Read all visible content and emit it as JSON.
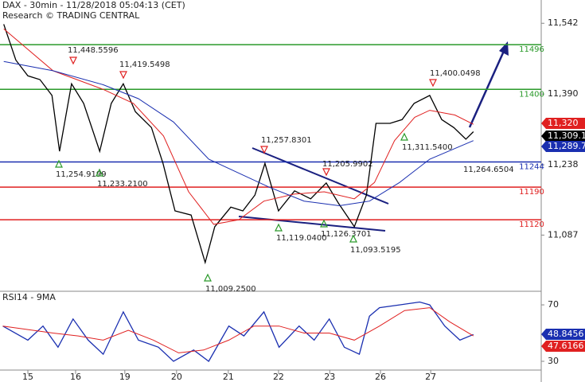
{
  "chart_data": [
    {
      "type": "line",
      "title": "DAX - 30min - 11/28/2018 05:04:13 (CET)",
      "subtitle": "Research © TRADING CENTRAL",
      "xlim": [
        -0.555,
        10.22
      ],
      "ylim": [
        10968,
        11592
      ],
      "yticks": [
        {
          "value": 11542,
          "label": "11,542"
        },
        {
          "value": 11390,
          "label": "11,390"
        },
        {
          "value": 11238,
          "label": "11,238"
        },
        {
          "value": 11087,
          "label": "11,087"
        }
      ],
      "series": [
        {
          "color": "#000000",
          "x": [
            -0.48,
            -0.24,
            0,
            0.24,
            0.48,
            0.63,
            0.87,
            1.11,
            1.43,
            1.66,
            1.9,
            2.14,
            2.46,
            2.69,
            2.93,
            3.25,
            3.53,
            3.72,
            4.04,
            4.28,
            4.52,
            4.72,
            4.99,
            5.31,
            5.63,
            5.94,
            6.18,
            6.5,
            6.74,
            6.93,
            7.21,
            7.45,
            7.69,
            8.0,
            8.24,
            8.48,
            8.72,
            8.87
          ],
          "values": [
            11540,
            11463,
            11429,
            11421,
            11387,
            11267,
            11412,
            11370,
            11267,
            11370,
            11412,
            11352,
            11318,
            11241,
            11139,
            11130,
            11028,
            11105,
            11147,
            11139,
            11173,
            11241,
            11139,
            11182,
            11165,
            11199,
            11156,
            11105,
            11173,
            11327,
            11327,
            11335,
            11370,
            11387,
            11335,
            11318,
            11293,
            11309
          ]
        },
        {
          "color": "#e02020",
          "x": [
            -0.48,
            0.5,
            1.5,
            2.1,
            2.7,
            3.2,
            3.7,
            4.2,
            4.7,
            5.3,
            5.9,
            6.5,
            6.9,
            7.3,
            7.7,
            8.0,
            8.5,
            8.87
          ],
          "values": [
            11530,
            11440,
            11400,
            11370,
            11300,
            11180,
            11110,
            11120,
            11160,
            11175,
            11180,
            11165,
            11200,
            11290,
            11340,
            11355,
            11345,
            11325
          ]
        },
        {
          "color": "#1a2fb0",
          "x": [
            -0.48,
            0.5,
            1.5,
            2.2,
            2.9,
            3.6,
            4.2,
            4.8,
            5.5,
            6.2,
            6.8,
            7.4,
            8.0,
            8.87
          ],
          "values": [
            11460,
            11440,
            11410,
            11380,
            11330,
            11250,
            11220,
            11190,
            11160,
            11150,
            11160,
            11200,
            11250,
            11290
          ]
        }
      ],
      "levels": [
        {
          "value": 11496,
          "color": "#2a9a2a"
        },
        {
          "value": 11400,
          "color": "#2a9a2a"
        },
        {
          "value": 11244,
          "color": "#1a2fb0"
        },
        {
          "value": 11190,
          "color": "#e02020"
        },
        {
          "value": 11120,
          "color": "#e02020"
        }
      ],
      "price_tags": [
        {
          "value": 11320,
          "label": "11,320",
          "color": "#e02020"
        },
        {
          "value": 11309.1,
          "label": "11,309.1",
          "color": "#000000"
        },
        {
          "value": 11289.7,
          "label": "11,289.7",
          "color": "#1a2fb0"
        }
      ],
      "annotations": [
        {
          "text": "11,448.5596",
          "marker": "down"
        },
        {
          "text": "11,419.5498",
          "marker": "down"
        },
        {
          "text": "11,254.9199",
          "marker": "up"
        },
        {
          "text": "11,233.2100",
          "marker": "up"
        },
        {
          "text": "11,257.8301",
          "marker": "down"
        },
        {
          "text": "11,205.9902",
          "marker": "down"
        },
        {
          "text": "11,119.0400",
          "marker": "up"
        },
        {
          "text": "11,126.3701",
          "marker": "up"
        },
        {
          "text": "11,093.5195",
          "marker": "up"
        },
        {
          "text": "11,009.2500",
          "marker": "up"
        },
        {
          "text": "11,400.0498",
          "marker": "down"
        },
        {
          "text": "11,311.5400",
          "marker": "up"
        },
        {
          "text": "11,264.6504"
        }
      ]
    },
    {
      "type": "line",
      "title": "RSI14 - 9MA",
      "xlim": [
        -0.555,
        10.22
      ],
      "ylim": [
        23.8,
        78.5
      ],
      "yticks": [
        70,
        30
      ],
      "xticks": [
        {
          "value": 0,
          "label": "15"
        },
        {
          "value": 0.95,
          "label": "16"
        },
        {
          "value": 1.93,
          "label": "19"
        },
        {
          "value": 2.96,
          "label": "20"
        },
        {
          "value": 3.99,
          "label": "21"
        },
        {
          "value": 4.99,
          "label": "22"
        },
        {
          "value": 6.01,
          "label": "23"
        },
        {
          "value": 7.02,
          "label": "26"
        },
        {
          "value": 8.02,
          "label": "27"
        }
      ],
      "series": [
        {
          "color": "#1a2fb0",
          "x": [
            -0.5,
            0,
            0.3,
            0.6,
            0.9,
            1.2,
            1.5,
            1.9,
            2.2,
            2.6,
            2.9,
            3.3,
            3.6,
            4.0,
            4.3,
            4.7,
            5.0,
            5.4,
            5.7,
            6.0,
            6.3,
            6.6,
            6.8,
            7.0,
            7.4,
            7.8,
            8.0,
            8.3,
            8.6,
            8.87
          ],
          "values": [
            55,
            45,
            55,
            40,
            60,
            45,
            35,
            65,
            45,
            40,
            30,
            38,
            30,
            55,
            48,
            65,
            40,
            55,
            45,
            60,
            40,
            35,
            62,
            68,
            70,
            72,
            70,
            55,
            45,
            49
          ]
        },
        {
          "color": "#e02020",
          "x": [
            -0.5,
            0.5,
            1.0,
            1.5,
            2.0,
            2.5,
            3.0,
            3.5,
            4.0,
            4.5,
            5.0,
            5.5,
            6.0,
            6.5,
            7.0,
            7.5,
            8.0,
            8.4,
            8.87
          ],
          "values": [
            55,
            50,
            48,
            45,
            52,
            45,
            36,
            38,
            45,
            55,
            55,
            50,
            50,
            45,
            55,
            66,
            68,
            58,
            48
          ]
        }
      ],
      "price_tags": [
        {
          "value": 48.8456,
          "label": "48.8456",
          "color": "#1a2fb0"
        },
        {
          "value": 47.6166,
          "label": "47.6166",
          "color": "#e02020"
        }
      ]
    }
  ]
}
